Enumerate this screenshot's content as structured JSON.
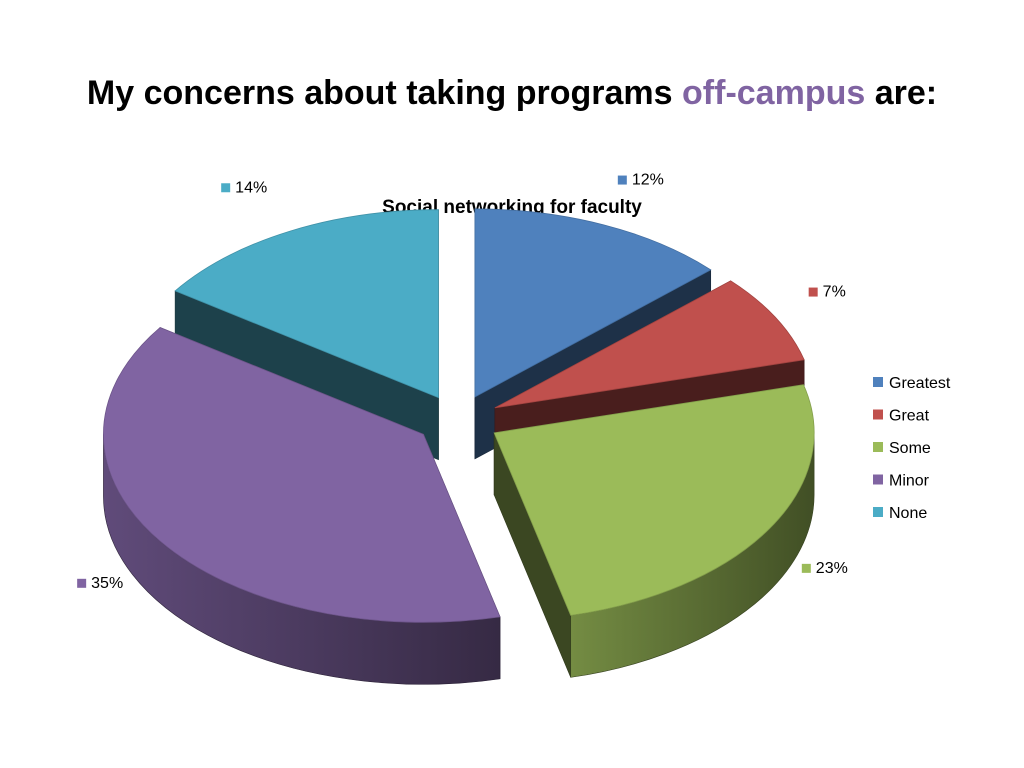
{
  "slide": {
    "title_before": "My concerns about taking programs ",
    "title_accent": "off-campus",
    "title_after": " are:",
    "accent_color": "#8064A2"
  },
  "chart_data": {
    "type": "pie",
    "title": "Social networking for faculty",
    "style": "exploded 3D pie",
    "legend_position": "right",
    "slices": [
      {
        "category": "Greatest",
        "value": 12,
        "label": "12%",
        "color": "#4F81BD"
      },
      {
        "category": "Great",
        "value": 7,
        "label": "7%",
        "color": "#C0504D"
      },
      {
        "category": "Some",
        "value": 23,
        "label": "23%",
        "color": "#9BBB59"
      },
      {
        "category": "Minor",
        "value": 35,
        "label": "35%",
        "color": "#8064A2"
      },
      {
        "category": "None",
        "value": 14,
        "label": "14%",
        "color": "#4BACC6"
      }
    ]
  }
}
